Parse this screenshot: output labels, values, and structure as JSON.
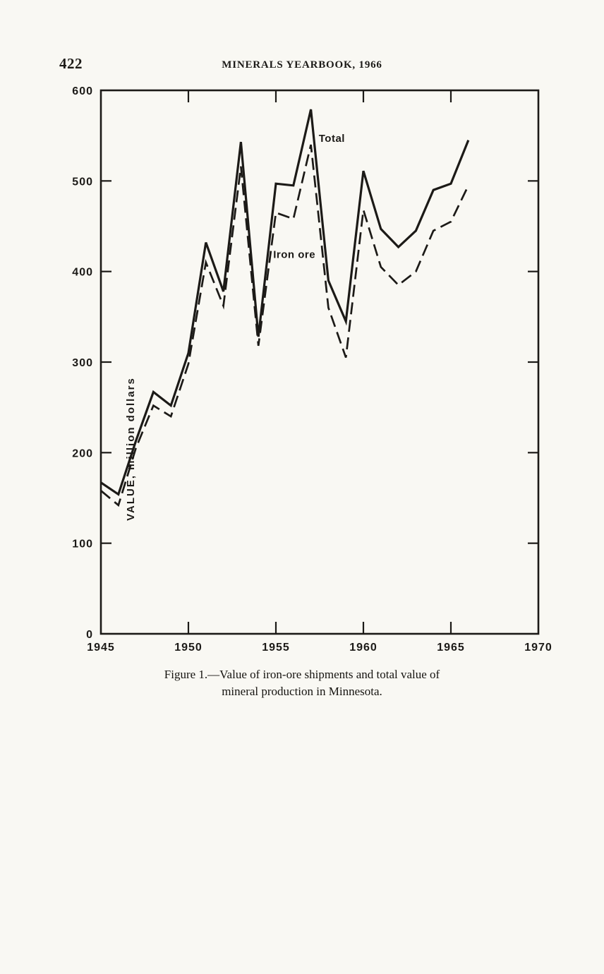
{
  "page": {
    "number": "422",
    "header": "MINERALS YEARBOOK, 1966",
    "caption_line1": "Figure 1.—Value of iron-ore shipments and total value of",
    "caption_line2": "mineral production in Minnesota."
  },
  "colors": {
    "ink": "#1c1a17",
    "paper": "#f9f8f3"
  },
  "chart_data": {
    "type": "line",
    "title": "",
    "xlabel": "",
    "ylabel": "VALUE, million dollars",
    "xlim": [
      1945,
      1970
    ],
    "ylim": [
      0,
      600
    ],
    "x_ticks": [
      1945,
      1950,
      1955,
      1960,
      1965,
      1970
    ],
    "y_ticks": [
      0,
      100,
      200,
      300,
      400,
      500,
      600
    ],
    "grid": false,
    "legend_position": "inline-annotations",
    "x": [
      1945,
      1946,
      1947,
      1948,
      1949,
      1950,
      1951,
      1952,
      1953,
      1954,
      1955,
      1956,
      1957,
      1958,
      1959,
      1960,
      1961,
      1962,
      1963,
      1964,
      1965,
      1966
    ],
    "series": [
      {
        "name": "Total",
        "style": "solid",
        "values": [
          167,
          154,
          213,
          267,
          252,
          310,
          432,
          378,
          543,
          328,
          497,
          495,
          579,
          390,
          345,
          511,
          447,
          427,
          445,
          490,
          497,
          545
        ]
      },
      {
        "name": "Iron ore",
        "style": "dashed",
        "values": [
          158,
          142,
          205,
          252,
          240,
          298,
          410,
          362,
          516,
          318,
          465,
          458,
          540,
          360,
          305,
          468,
          405,
          385,
          400,
          445,
          455,
          495
        ]
      }
    ],
    "annotations": [
      {
        "text": "Total",
        "x": 1957.45,
        "y": 543
      },
      {
        "text": "Iron ore",
        "x": 1954.85,
        "y": 415
      }
    ]
  }
}
